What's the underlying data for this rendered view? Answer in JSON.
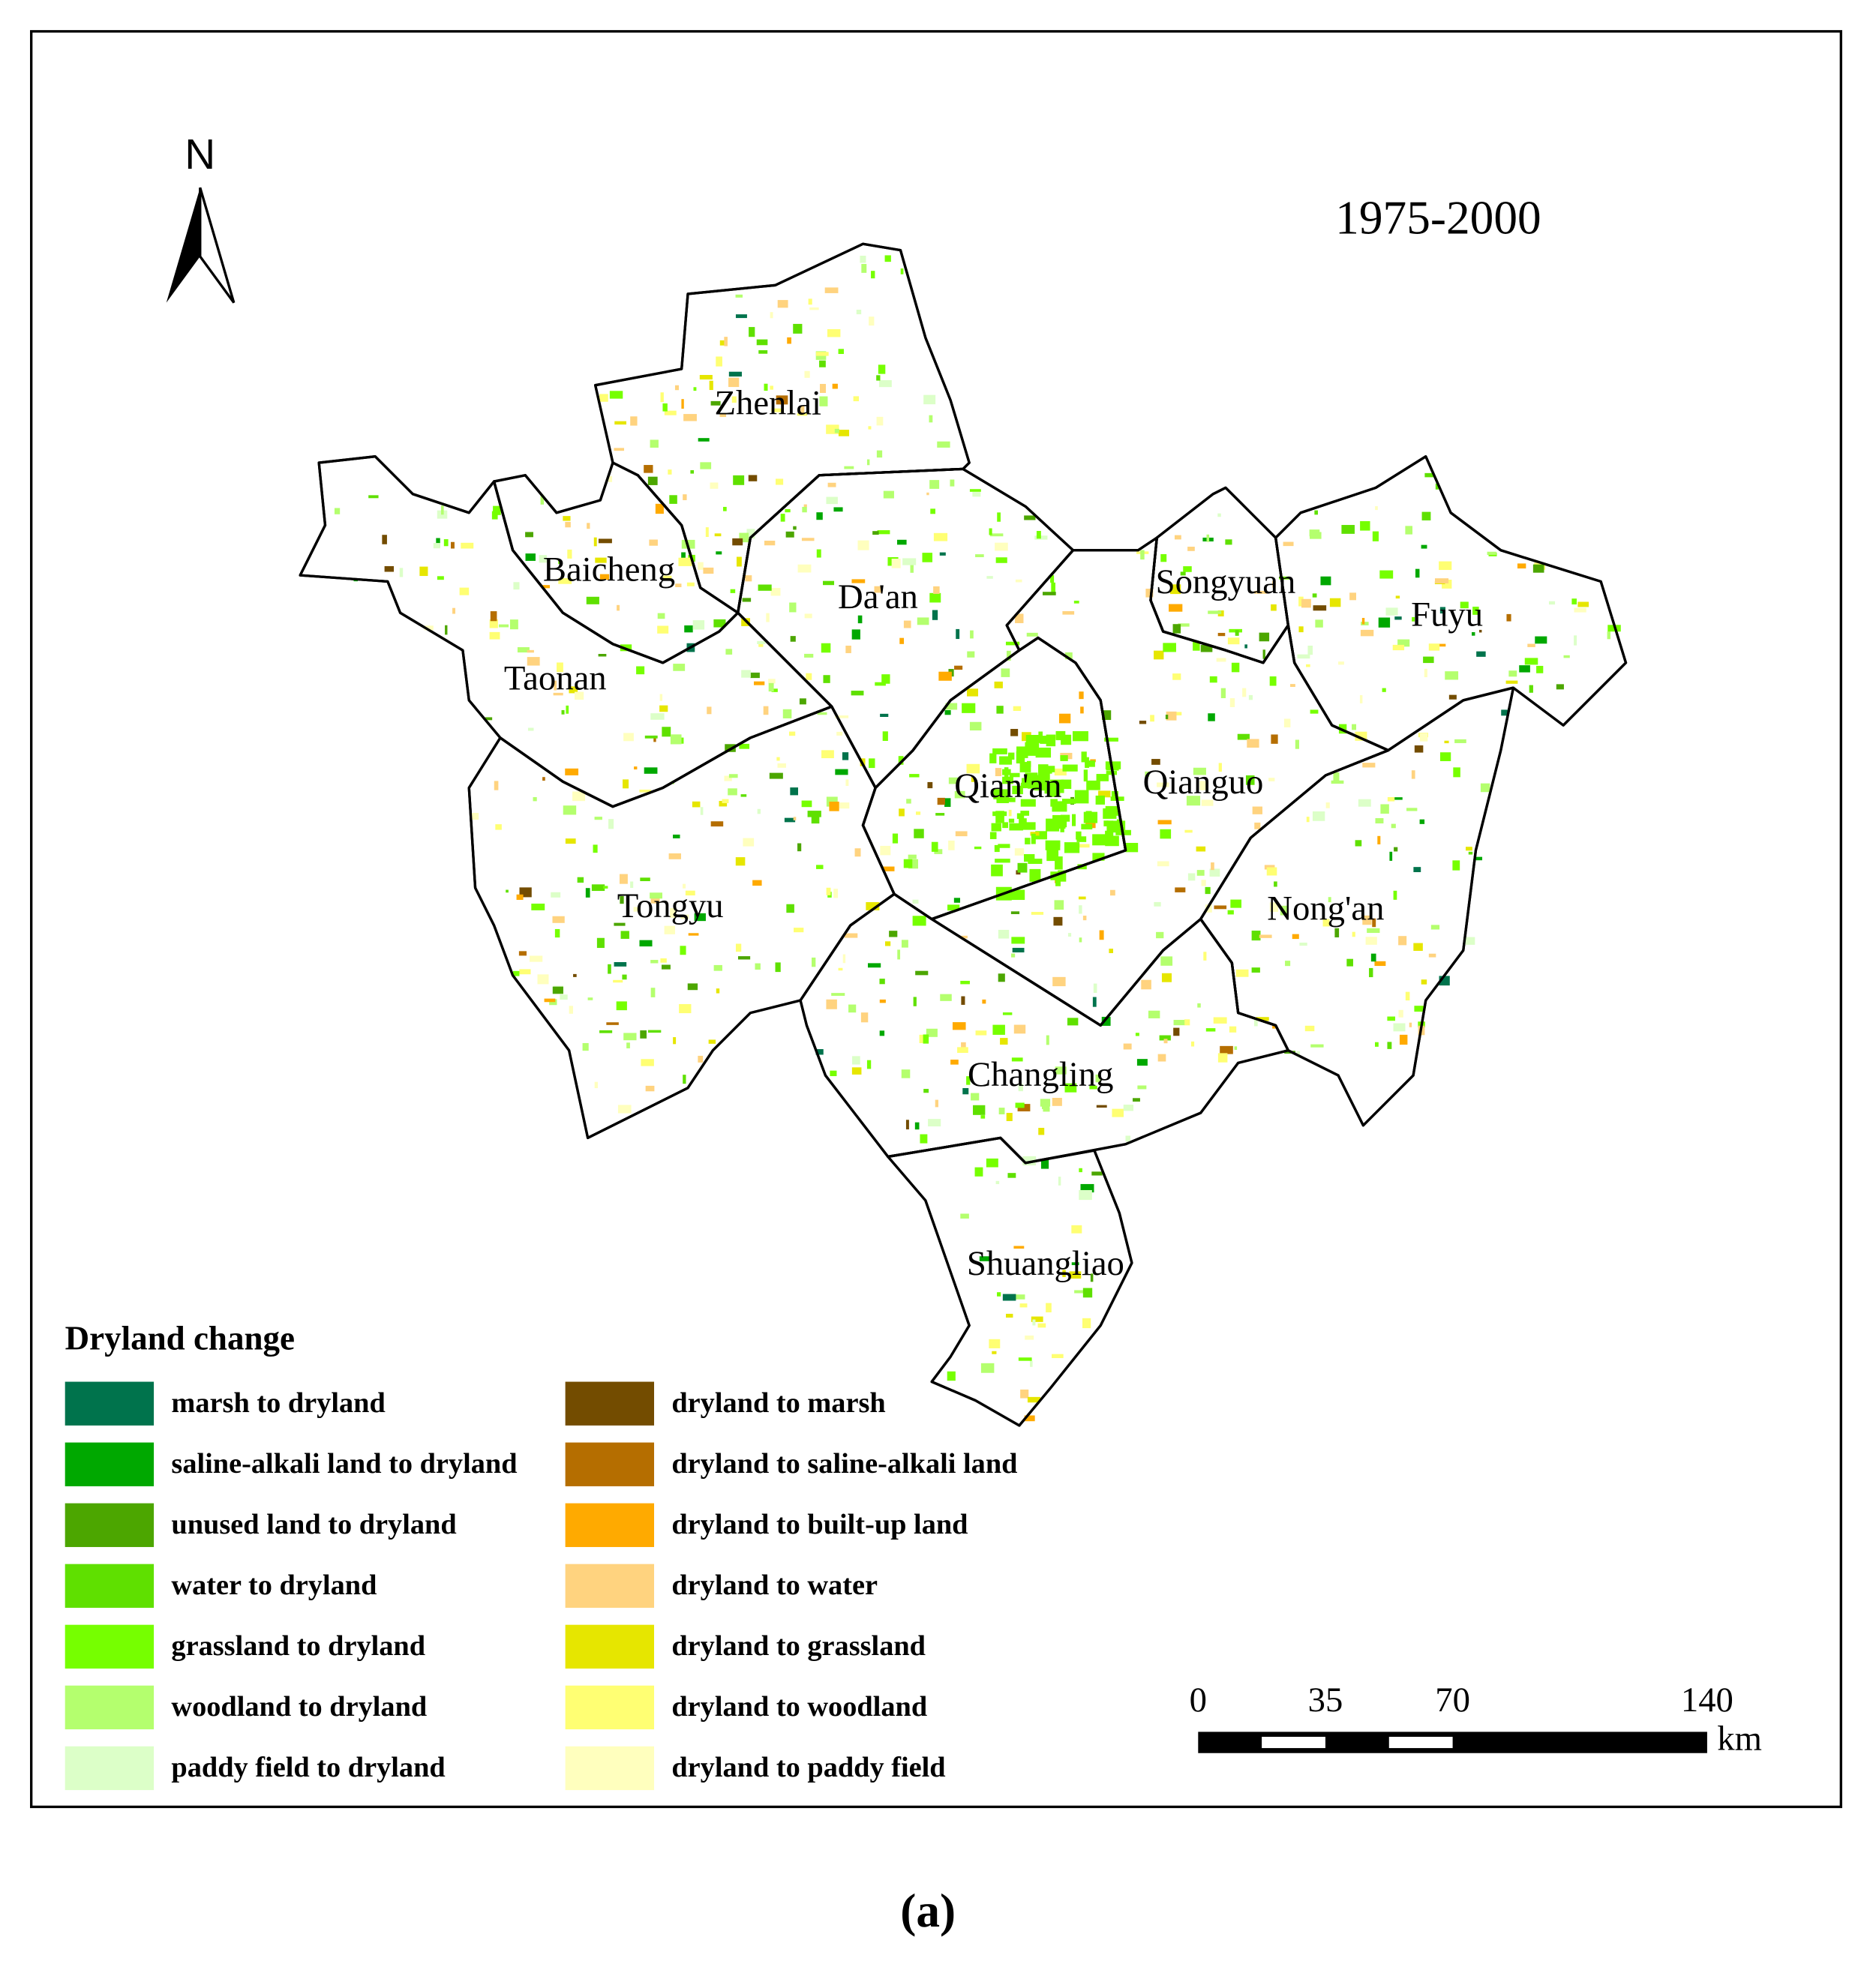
{
  "title": "1975-2000",
  "north_arrow": "N",
  "counties": [
    "Zhenlai",
    "Baicheng",
    "Da'an",
    "Taonan",
    "Songyuan",
    "Fuyu",
    "Qian'an",
    "Qianguo",
    "Tongyu",
    "Nong'an",
    "Changling",
    "Shuangliao"
  ],
  "legend": {
    "title": "Dryland change",
    "items": [
      {
        "label": "marsh to dryland",
        "color": "#00734c"
      },
      {
        "label": "saline-alkali land to dryland",
        "color": "#00a800"
      },
      {
        "label": "unused land to dryland",
        "color": "#4ca600"
      },
      {
        "label": "water to dryland",
        "color": "#5fe000"
      },
      {
        "label": "grassland to dryland",
        "color": "#76ff00"
      },
      {
        "label": "woodland to dryland",
        "color": "#b4ff6e"
      },
      {
        "label": "paddy field to dryland",
        "color": "#dcffc8"
      },
      {
        "label": "dryland to marsh",
        "color": "#734c00"
      },
      {
        "label": "dryland to saline-alkali land",
        "color": "#b56e00"
      },
      {
        "label": "dryland to built-up land",
        "color": "#ffaa00"
      },
      {
        "label": "dryland to water",
        "color": "#ffd37f"
      },
      {
        "label": "dryland to grassland",
        "color": "#e6e600"
      },
      {
        "label": "dryland to woodland",
        "color": "#ffff73"
      },
      {
        "label": "dryland to paddy field",
        "color": "#ffffbe"
      }
    ]
  },
  "scale_bar": {
    "ticks": [
      0,
      35,
      70,
      140
    ],
    "unit": "km"
  },
  "caption": "(a)"
}
